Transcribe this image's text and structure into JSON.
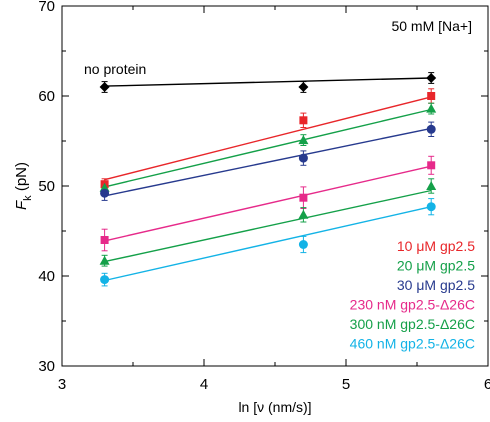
{
  "chart_data": {
    "type": "scatter",
    "title": "",
    "annotation": "50 mM [Na+]",
    "xlabel": "ln [ν (nm/s)]",
    "ylabel": "F",
    "ylabel_sub": "k",
    "ylabel_unit": " (pN)",
    "xlim": [
      3,
      6
    ],
    "ylim": [
      30,
      70
    ],
    "xticks": [
      3,
      4,
      5,
      6
    ],
    "yticks": [
      30,
      40,
      50,
      60,
      70
    ],
    "x_minor_step": 0.5,
    "y_minor_step": 5,
    "grid": false,
    "legend_position": "bottom-right, inside plot",
    "series": [
      {
        "name": "no protein",
        "color": "#000000",
        "marker": "diamond",
        "label_placement": "above line, left",
        "points": [
          {
            "x": 3.3,
            "y": 61.0,
            "err": 0.6
          },
          {
            "x": 4.7,
            "y": 61.0,
            "err": 0.6
          },
          {
            "x": 5.6,
            "y": 62.0,
            "err": 0.6
          }
        ],
        "fit": [
          {
            "x": 3.3,
            "y": 61.1
          },
          {
            "x": 5.6,
            "y": 62.0
          }
        ]
      },
      {
        "name": "10 μM gp2.5",
        "color": "#e8262a",
        "marker": "square",
        "points": [
          {
            "x": 3.3,
            "y": 50.2,
            "err": 0.6
          },
          {
            "x": 4.7,
            "y": 57.3,
            "err": 0.8
          },
          {
            "x": 5.6,
            "y": 60.0,
            "err": 0.8
          }
        ],
        "fit": [
          {
            "x": 3.3,
            "y": 50.7
          },
          {
            "x": 5.6,
            "y": 59.9
          }
        ]
      },
      {
        "name": "20 μM gp2.5",
        "color": "#14a049",
        "marker": "triangle",
        "points": [
          {
            "x": 3.3,
            "y": 49.8,
            "err": 0.5
          },
          {
            "x": 4.7,
            "y": 55.1,
            "err": 0.6
          },
          {
            "x": 5.6,
            "y": 58.6,
            "err": 0.6
          }
        ],
        "fit": [
          {
            "x": 3.3,
            "y": 49.9
          },
          {
            "x": 5.6,
            "y": 58.5
          }
        ]
      },
      {
        "name": "30 μM gp2.5",
        "color": "#273a8e",
        "marker": "circle",
        "points": [
          {
            "x": 3.3,
            "y": 49.2,
            "err": 0.8
          },
          {
            "x": 4.7,
            "y": 53.1,
            "err": 0.8
          },
          {
            "x": 5.6,
            "y": 56.3,
            "err": 0.8
          }
        ],
        "fit": [
          {
            "x": 3.3,
            "y": 48.9
          },
          {
            "x": 5.6,
            "y": 56.4
          }
        ]
      },
      {
        "name": "230 nM gp2.5-Δ26C",
        "color": "#e62a8a",
        "marker": "square",
        "points": [
          {
            "x": 3.3,
            "y": 44.0,
            "err": 1.2
          },
          {
            "x": 4.7,
            "y": 48.7,
            "err": 1.2
          },
          {
            "x": 5.6,
            "y": 52.3,
            "err": 1.0
          }
        ],
        "fit": [
          {
            "x": 3.3,
            "y": 43.9
          },
          {
            "x": 5.6,
            "y": 52.2
          }
        ]
      },
      {
        "name": "300 nM gp2.5-Δ26C",
        "color": "#14a049",
        "marker": "triangle",
        "points": [
          {
            "x": 3.3,
            "y": 41.7,
            "err": 0.6
          },
          {
            "x": 4.7,
            "y": 46.8,
            "err": 0.8
          },
          {
            "x": 5.6,
            "y": 50.0,
            "err": 0.8
          }
        ],
        "fit": [
          {
            "x": 3.3,
            "y": 41.6
          },
          {
            "x": 5.6,
            "y": 49.5
          }
        ]
      },
      {
        "name": "460 nM gp2.5-Δ26C",
        "color": "#13b3e6",
        "marker": "circle",
        "points": [
          {
            "x": 3.3,
            "y": 39.6,
            "err": 0.7
          },
          {
            "x": 4.7,
            "y": 43.5,
            "err": 0.9
          },
          {
            "x": 5.6,
            "y": 47.7,
            "err": 0.9
          }
        ],
        "fit": [
          {
            "x": 3.3,
            "y": 39.5
          },
          {
            "x": 5.6,
            "y": 47.7
          }
        ]
      }
    ]
  }
}
